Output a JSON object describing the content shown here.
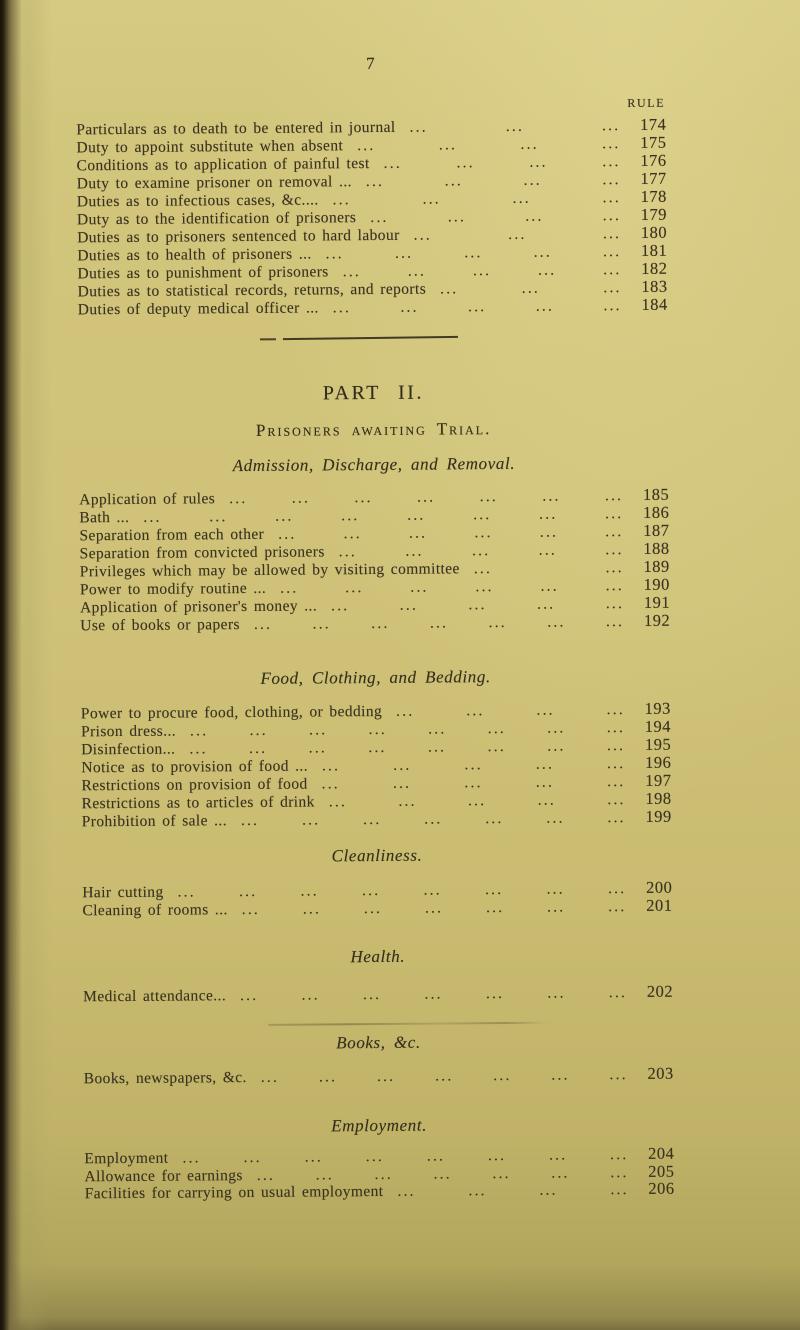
{
  "colors": {
    "paper": "#cfc278",
    "ink": "#3a321f",
    "gutter_dark": "#241d10"
  },
  "page_number": "7",
  "rule_column_header": "RULE",
  "toc_intro": {
    "items": [
      {
        "label": "Particulars as to death to be entered in journal",
        "dots": "... ... ...",
        "rule": "174"
      },
      {
        "label": "Duty to appoint substitute when absent",
        "dots": "... ... ... ...",
        "rule": "175"
      },
      {
        "label": "Conditions as to application of painful test",
        "dots": "... ... ... ...",
        "rule": "176"
      },
      {
        "label": "Duty to examine prisoner on removal ...",
        "dots": "... ... ... ...",
        "rule": "177"
      },
      {
        "label": "Duties as to infectious cases, &c....",
        "dots": "... ... ... ...",
        "rule": "178"
      },
      {
        "label": "Duty as to the identification of prisoners",
        "dots": "... ... ... ...",
        "rule": "179"
      },
      {
        "label": "Duties as to prisoners sentenced to hard labour",
        "dots": "... ... ...",
        "rule": "180"
      },
      {
        "label": "Duties as to health of prisoners ...",
        "dots": "... ... ... ... ...",
        "rule": "181"
      },
      {
        "label": "Duties as to punishment of prisoners",
        "dots": "... ... ... ... ...",
        "rule": "182"
      },
      {
        "label": "Duties as to statistical records, returns, and reports",
        "dots": "... ... ...",
        "rule": "183"
      },
      {
        "label": "Duties of deputy medical officer ...",
        "dots": "... ... ... ... ...",
        "rule": "184"
      }
    ]
  },
  "part": {
    "title": "PART II.",
    "subtitle": "Prisoners awaiting Trial."
  },
  "sections": [
    {
      "heading": "Admission, Discharge, and Removal.",
      "items": [
        {
          "label": "Application of rules",
          "dots": "... ... ... ... ... ... ...",
          "rule": "185"
        },
        {
          "label": "Bath ...",
          "dots": "... ... ... ... ... ... ... ...",
          "rule": "186"
        },
        {
          "label": "Separation from each other",
          "dots": "... ... ... ... ... ...",
          "rule": "187"
        },
        {
          "label": "Separation from convicted prisoners",
          "dots": "... ... ... ... ...",
          "rule": "188"
        },
        {
          "label": "Privileges which may be allowed by visiting committee",
          "dots": "... ...",
          "rule": "189"
        },
        {
          "label": "Power to modify routine ...",
          "dots": "... ... ... ... ... ...",
          "rule": "190"
        },
        {
          "label": "Application of prisoner's money ...",
          "dots": "... ... ... ... ...",
          "rule": "191"
        },
        {
          "label": "Use of books or papers",
          "dots": "... ... ... ... ... ... ...",
          "rule": "192"
        }
      ]
    },
    {
      "heading": "Food, Clothing, and Bedding.",
      "items": [
        {
          "label": "Power to procure food, clothing, or bedding",
          "dots": "... ... ... ...",
          "rule": "193"
        },
        {
          "label": "Prison dress...",
          "dots": "... ... ... ... ... ... ... ...",
          "rule": "194"
        },
        {
          "label": "Disinfection...",
          "dots": "... ... ... ... ... ... ... ...",
          "rule": "195"
        },
        {
          "label": "Notice as to provision of food ...",
          "dots": "... ... ... ... ...",
          "rule": "196"
        },
        {
          "label": "Restrictions on provision of food",
          "dots": "... ... ... ... ...",
          "rule": "197"
        },
        {
          "label": "Restrictions as to articles of drink",
          "dots": "... ... ... ... ...",
          "rule": "198"
        },
        {
          "label": "Prohibition of sale ...",
          "dots": "... ... ... ... ... ... ...",
          "rule": "199"
        }
      ]
    },
    {
      "heading": "Cleanliness.",
      "items": [
        {
          "label": "Hair cutting",
          "dots": "... ... ... ... ... ... ... ...",
          "rule": "200"
        },
        {
          "label": "Cleaning of rooms ...",
          "dots": "... ... ... ... ... ... ...",
          "rule": "201"
        }
      ]
    },
    {
      "heading": "Health.",
      "items": [
        {
          "label": "Medical attendance...",
          "dots": "... ... ... ... ... ... ...",
          "rule": "202"
        }
      ]
    },
    {
      "heading": "Books, &c.",
      "items": [
        {
          "label": "Books, newspapers, &c.",
          "dots": "... ... ... ... ... ... ...",
          "rule": "203"
        }
      ]
    },
    {
      "heading": "Employment.",
      "items": [
        {
          "label": "Employment",
          "dots": "... ... ... ... ... ... ... ...",
          "rule": "204"
        },
        {
          "label": "Allowance for earnings",
          "dots": "... ... ... ... ... ... ...",
          "rule": "205"
        },
        {
          "label": "Facilities for carrying on usual employment",
          "dots": "... ... ... ...",
          "rule": "206"
        }
      ]
    }
  ]
}
